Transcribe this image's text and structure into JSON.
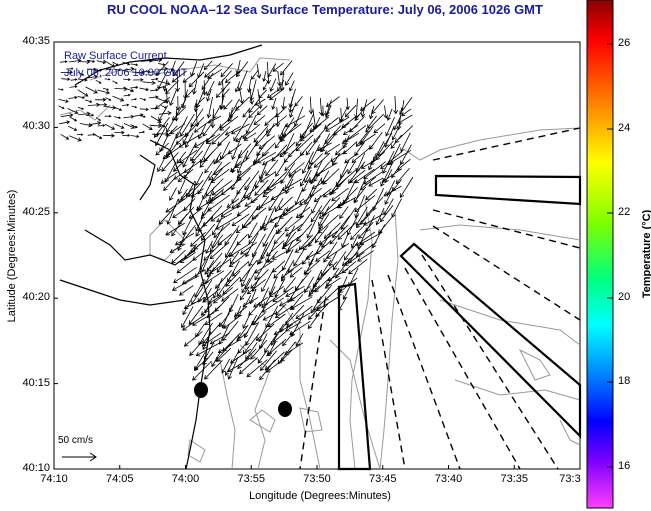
{
  "header": {
    "title": "RU COOL  NOAA–12  Sea Surface Temperature:  July 06, 2006 1026 GMT"
  },
  "axes": {
    "ylabel": "Latitude (Degrees:Minutes)",
    "xlabel": "Longitude (Degrees:Minutes)",
    "y_ticks": [
      "40:35",
      "40:30",
      "40:25",
      "40:20",
      "40:15",
      "40:10"
    ],
    "x_ticks": [
      "74:10",
      "74:05",
      "74:00",
      "73:55",
      "73:50",
      "73:45",
      "73:40",
      "73:35",
      "73:3"
    ]
  },
  "overlay": {
    "line1": "Raw Surface Current",
    "line2": "July 06, 2006 10:00 GMT"
  },
  "scale": {
    "label": "50 cm/s"
  },
  "colorbar": {
    "title": "Temperature (°C)",
    "ticks": [
      "26",
      "24",
      "22",
      "20",
      "18",
      "16"
    ]
  },
  "colors": {
    "title": "#1a1aa0",
    "coast": "#000000",
    "bathymetry": "#888888"
  }
}
